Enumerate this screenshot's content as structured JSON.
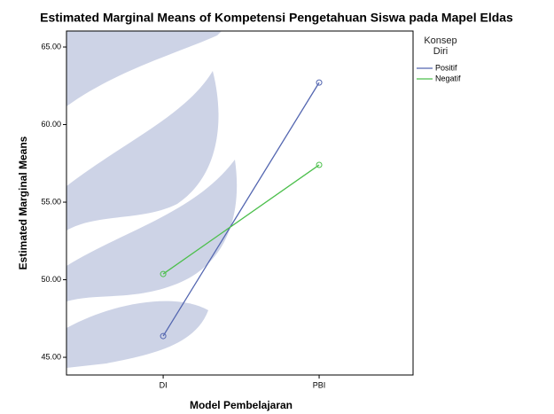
{
  "chart_data": {
    "type": "line",
    "title": "Estimated Marginal Means of Kompetensi Pengetahuan Siswa pada Mapel Eldas",
    "x_label": "Model Pembelajaran",
    "y_label": "Estimated Marginal Means",
    "legend_title": "Konsep Diri",
    "categories": [
      "DI",
      "PBI"
    ],
    "series": [
      {
        "name": "Positif",
        "color": "#5366b0",
        "values": [
          46.37,
          62.71
        ]
      },
      {
        "name": "Negatif",
        "color": "#4cbf4c",
        "values": [
          50.37,
          57.4
        ]
      }
    ],
    "ylim": [
      43.86,
      66.03
    ],
    "yticks": [
      {
        "value": 45,
        "label": "45.00"
      },
      {
        "value": 50,
        "label": "50.00"
      },
      {
        "value": 55,
        "label": "55.00"
      },
      {
        "value": 60,
        "label": "60.00"
      },
      {
        "value": 65,
        "label": "65.00"
      }
    ],
    "legend": "right",
    "grid": false
  }
}
